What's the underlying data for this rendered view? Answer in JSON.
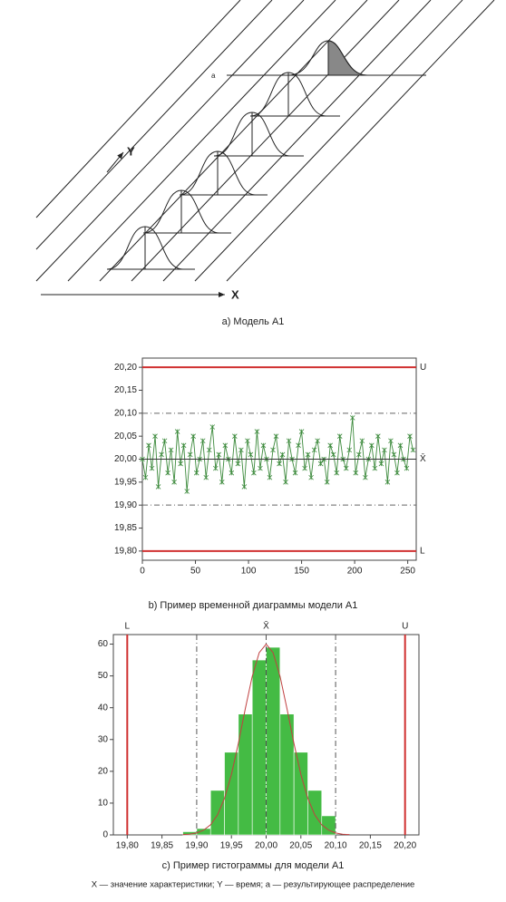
{
  "diagram": {
    "y_label": "Y",
    "x_label": "X",
    "a_label": "a",
    "caption": "а) Модель А1"
  },
  "chart_data": [
    {
      "type": "line",
      "caption": "b) Пример временной диаграммы модели А1",
      "x": [
        0,
        3,
        6,
        9,
        12,
        15,
        18,
        21,
        24,
        27,
        30,
        33,
        36,
        39,
        42,
        45,
        48,
        51,
        54,
        57,
        60,
        63,
        66,
        69,
        72,
        75,
        78,
        81,
        84,
        87,
        90,
        93,
        96,
        99,
        102,
        105,
        108,
        111,
        114,
        117,
        120,
        123,
        126,
        129,
        132,
        135,
        138,
        141,
        144,
        147,
        150,
        153,
        156,
        159,
        162,
        165,
        168,
        171,
        174,
        177,
        180,
        183,
        186,
        189,
        192,
        195,
        198,
        201,
        204,
        207,
        210,
        213,
        216,
        219,
        222,
        225,
        228,
        231,
        234,
        237,
        240,
        243,
        246,
        249,
        252,
        255
      ],
      "series": [
        {
          "color": "#3c8a3c",
          "values": [
            20.0,
            19.96,
            20.03,
            19.98,
            20.05,
            19.94,
            20.01,
            20.04,
            19.97,
            20.02,
            19.95,
            20.06,
            19.99,
            20.03,
            19.93,
            20.01,
            20.05,
            19.97,
            20.0,
            20.04,
            19.96,
            20.02,
            20.07,
            19.98,
            20.01,
            19.95,
            20.03,
            20.0,
            19.97,
            20.05,
            19.99,
            20.02,
            19.94,
            20.04,
            20.01,
            19.97,
            20.06,
            19.98,
            20.03,
            20.0,
            19.96,
            20.02,
            20.05,
            19.99,
            20.01,
            19.95,
            20.04,
            20.0,
            19.97,
            20.03,
            20.06,
            19.98,
            20.01,
            19.96,
            20.02,
            20.04,
            19.99,
            20.0,
            19.95,
            20.03,
            20.01,
            19.97,
            20.05,
            20.0,
            19.98,
            20.02,
            20.09,
            19.97,
            20.01,
            20.04,
            19.96,
            20.0,
            20.03,
            19.98,
            20.05,
            19.99,
            20.02,
            19.95,
            20.04,
            20.01,
            19.97,
            20.03,
            20.0,
            19.98,
            20.05,
            20.02
          ]
        }
      ],
      "xlim": [
        0,
        258
      ],
      "xticks": [
        0,
        50,
        100,
        150,
        200,
        250
      ],
      "ylim": [
        19.78,
        20.22
      ],
      "yticks": [
        {
          "value": 19.8,
          "label": "19,80"
        },
        {
          "value": 19.85,
          "label": "19,85"
        },
        {
          "value": 19.9,
          "label": "19,90"
        },
        {
          "value": 19.95,
          "label": "19,95"
        },
        {
          "value": 20.0,
          "label": "20,00"
        },
        {
          "value": 20.05,
          "label": "20,05"
        },
        {
          "value": 20.1,
          "label": "20,10"
        },
        {
          "value": 20.15,
          "label": "20,15"
        },
        {
          "value": 20.2,
          "label": "20,20"
        }
      ],
      "reference_lines": [
        {
          "value": 20.2,
          "label": "U",
          "color": "#d03030",
          "style": "solid"
        },
        {
          "value": 20.1,
          "color": "#666666",
          "style": "dashdot"
        },
        {
          "value": 20.0,
          "label": "X̄",
          "color": "#333333",
          "style": "solid"
        },
        {
          "value": 19.9,
          "color": "#666666",
          "style": "dashdot"
        },
        {
          "value": 19.8,
          "label": "L",
          "color": "#d03030",
          "style": "solid"
        }
      ]
    },
    {
      "type": "histogram",
      "caption": "c) Пример гистограммы для модели А1",
      "bins": [
        19.88,
        19.9,
        19.92,
        19.94,
        19.96,
        19.98,
        20.0,
        20.02,
        20.04,
        20.06,
        20.08,
        20.1
      ],
      "values": [
        1,
        2,
        14,
        26,
        38,
        55,
        59,
        38,
        26,
        14,
        6
      ],
      "color": "#44bb44",
      "curve": {
        "color": "#c04040",
        "x": [
          19.88,
          19.89,
          19.9,
          19.91,
          19.92,
          19.93,
          19.94,
          19.95,
          19.96,
          19.97,
          19.98,
          19.99,
          20.0,
          20.01,
          20.02,
          20.03,
          20.04,
          20.05,
          20.06,
          20.07,
          20.08,
          20.09,
          20.1,
          20.11,
          20.12
        ],
        "values": [
          0.1,
          0.2,
          0.6,
          1.5,
          3.2,
          6.3,
          11.5,
          19.0,
          28.8,
          39.7,
          49.9,
          57.3,
          60,
          57.3,
          49.9,
          39.7,
          28.8,
          19.0,
          11.5,
          6.3,
          3.2,
          1.5,
          0.6,
          0.2,
          0.1
        ]
      },
      "xlim": [
        19.78,
        20.22
      ],
      "xticks": [
        {
          "value": 19.8,
          "label": "19,80"
        },
        {
          "value": 19.85,
          "label": "19,85"
        },
        {
          "value": 19.9,
          "label": "19,90"
        },
        {
          "value": 19.95,
          "label": "19,95"
        },
        {
          "value": 20.0,
          "label": "20,00"
        },
        {
          "value": 20.05,
          "label": "20,05"
        },
        {
          "value": 20.1,
          "label": "20,10"
        },
        {
          "value": 20.15,
          "label": "20,15"
        },
        {
          "value": 20.2,
          "label": "20,20"
        }
      ],
      "ylim": [
        0,
        63
      ],
      "yticks": [
        0,
        10,
        20,
        30,
        40,
        50,
        60
      ],
      "reference_lines": [
        {
          "value": 19.8,
          "label": "L",
          "color": "#d03030",
          "style": "solid"
        },
        {
          "value": 19.9,
          "color": "#555555",
          "style": "dashdot"
        },
        {
          "value": 20.0,
          "label": "X̄",
          "color": "#555555",
          "style": "dashdot"
        },
        {
          "value": 20.1,
          "color": "#555555",
          "style": "dashdot"
        },
        {
          "value": 20.2,
          "label": "U",
          "color": "#d03030",
          "style": "solid"
        }
      ]
    }
  ],
  "footnote": "X — значение характеристики; Y — время; а — результирующее распределение"
}
